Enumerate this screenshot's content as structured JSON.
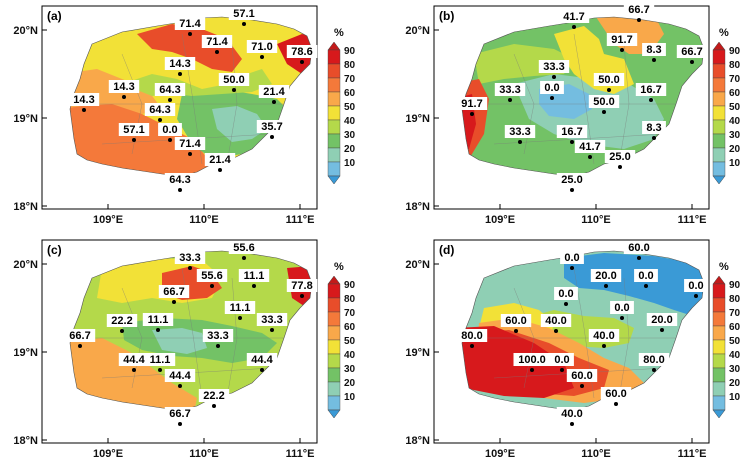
{
  "colorbar": {
    "unit": "%",
    "ticks": [
      "90",
      "80",
      "70",
      "60",
      "50",
      "40",
      "30",
      "20",
      "10"
    ],
    "colors": [
      "#d7191c",
      "#e84d2a",
      "#f4793a",
      "#f9a84a",
      "#f2e137",
      "#b4d94a",
      "#73c266",
      "#8fcfb4",
      "#74bde0"
    ],
    "top_arrow": "#c21a1a",
    "bottom_arrow": "#3a9ad6"
  },
  "axes": {
    "x_ticks": [
      "109°E",
      "110°E",
      "111°E"
    ],
    "y_ticks": [
      "20°N",
      "19°N",
      "18°N"
    ]
  },
  "panels": [
    {
      "label": "(a)",
      "base_color": "#f2e137",
      "regions": [
        {
          "color": "#f4793a"
        },
        {
          "color": "#f9a84a"
        },
        {
          "color": "#73c266"
        },
        {
          "color": "#8fcfb4"
        },
        {
          "color": "#b4d94a"
        },
        {
          "color": "#e84d2a"
        },
        {
          "color": "#d7191c"
        }
      ],
      "stations": [
        {
          "v": "71.4"
        },
        {
          "v": "57.1"
        },
        {
          "v": "71.4"
        },
        {
          "v": "71.0"
        },
        {
          "v": "78.6"
        },
        {
          "v": "14.3"
        },
        {
          "v": "14.3"
        },
        {
          "v": "64.3"
        },
        {
          "v": "50.0"
        },
        {
          "v": "64.3"
        },
        {
          "v": "14.3"
        },
        {
          "v": "21.4"
        },
        {
          "v": "57.1"
        },
        {
          "v": "0.0"
        },
        {
          "v": "71.4"
        },
        {
          "v": "35.7"
        },
        {
          "v": "21.4"
        },
        {
          "v": "64.3"
        }
      ]
    },
    {
      "label": "(b)",
      "base_color": "#73c266",
      "regions": [
        {
          "color": "#8fcfb4"
        },
        {
          "color": "#74bde0"
        },
        {
          "color": "#b4d94a"
        },
        {
          "color": "#f2e137"
        },
        {
          "color": "#f9a84a"
        },
        {
          "color": "#e84d2a"
        },
        {
          "color": "#d7191c"
        }
      ],
      "stations": [
        {
          "v": "41.7"
        },
        {
          "v": "66.7"
        },
        {
          "v": "91.7"
        },
        {
          "v": "8.3"
        },
        {
          "v": "66.7"
        },
        {
          "v": "33.3"
        },
        {
          "v": "33.3"
        },
        {
          "v": "0.0"
        },
        {
          "v": "50.0"
        },
        {
          "v": "16.7"
        },
        {
          "v": "91.7"
        },
        {
          "v": "50.0"
        },
        {
          "v": "33.3"
        },
        {
          "v": "16.7"
        },
        {
          "v": "41.7"
        },
        {
          "v": "8.3"
        },
        {
          "v": "25.0"
        },
        {
          "v": "25.0"
        }
      ]
    },
    {
      "label": "(c)",
      "base_color": "#b4d94a",
      "regions": [
        {
          "color": "#f9a84a"
        },
        {
          "color": "#f2e137"
        },
        {
          "color": "#73c266"
        },
        {
          "color": "#8fcfb4"
        },
        {
          "color": "#e84d2a"
        },
        {
          "color": "#d7191c"
        }
      ],
      "stations": [
        {
          "v": "33.3"
        },
        {
          "v": "55.6"
        },
        {
          "v": "55.6"
        },
        {
          "v": "11.1"
        },
        {
          "v": "77.8"
        },
        {
          "v": "66.7"
        },
        {
          "v": "22.2"
        },
        {
          "v": "11.1"
        },
        {
          "v": "11.1"
        },
        {
          "v": "33.3"
        },
        {
          "v": "66.7"
        },
        {
          "v": "33.3"
        },
        {
          "v": "44.4"
        },
        {
          "v": "11.1"
        },
        {
          "v": "44.4"
        },
        {
          "v": "44.4"
        },
        {
          "v": "22.2"
        },
        {
          "v": "66.7"
        }
      ]
    },
    {
      "label": "(d)",
      "base_color": "#8fcfb4",
      "regions": [
        {
          "color": "#3a9ad6"
        },
        {
          "color": "#b4d94a"
        },
        {
          "color": "#f2e137"
        },
        {
          "color": "#f9a84a"
        },
        {
          "color": "#e84d2a"
        },
        {
          "color": "#d7191c"
        }
      ],
      "stations": [
        {
          "v": "0.0"
        },
        {
          "v": "60.0"
        },
        {
          "v": "20.0"
        },
        {
          "v": "0.0"
        },
        {
          "v": "0.0"
        },
        {
          "v": "0.0"
        },
        {
          "v": "60.0"
        },
        {
          "v": "40.0"
        },
        {
          "v": "0.0"
        },
        {
          "v": "20.0"
        },
        {
          "v": "80.0"
        },
        {
          "v": "40.0"
        },
        {
          "v": "100.0"
        },
        {
          "v": "0.0"
        },
        {
          "v": "60.0"
        },
        {
          "v": "80.0"
        },
        {
          "v": "60.0"
        },
        {
          "v": "40.0"
        }
      ]
    }
  ]
}
